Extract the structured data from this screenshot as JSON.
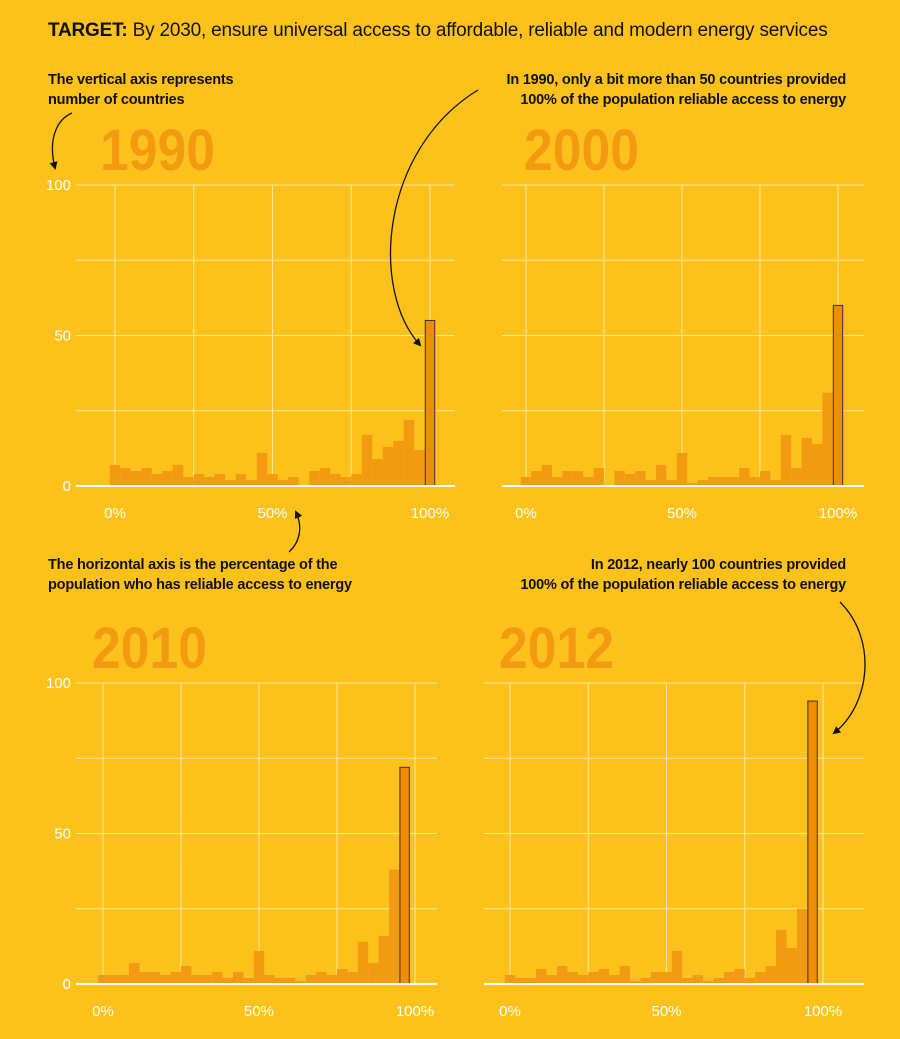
{
  "target": {
    "label": "TARGET:",
    "text": "By 2030, ensure universal access to affordable, reliable and modern energy services"
  },
  "notes": {
    "vertical_axis": [
      "The vertical axis represents",
      "number of countries"
    ],
    "annotation_1990": [
      "In 1990, only a bit more than 50 countries provided",
      "100% of the population reliable access to energy"
    ],
    "horizontal_axis": [
      "The horizontal axis is the percentage of the",
      "population who has reliable access to energy"
    ],
    "annotation_2012": [
      "In 2012, nearly 100 countries provided",
      "100% of the population reliable access to energy"
    ]
  },
  "colors": {
    "background": "#FCC21B",
    "bar": "#F39B10",
    "bar_highlight": "#F08C05",
    "year_label": "#F39B10",
    "grid": "#FDE7A0",
    "text": "#111111"
  },
  "chart_data": [
    {
      "type": "bar",
      "title": "1990",
      "xlabel": "percentage of population with reliable access to energy",
      "ylabel": "number of countries",
      "ylim": [
        0,
        100
      ],
      "yticks": [
        "0",
        "50",
        "100"
      ],
      "xticks": [
        "0%",
        "50%",
        "100%"
      ],
      "bins_percent": [
        0,
        3.33,
        6.67,
        10,
        13.33,
        16.67,
        20,
        23.33,
        26.67,
        30,
        33.33,
        36.67,
        40,
        43.33,
        46.67,
        50,
        53.33,
        56.67,
        60,
        63.33,
        66.67,
        70,
        73.33,
        76.67,
        80,
        83.33,
        86.67,
        90,
        93.33,
        96.67,
        100
      ],
      "values": [
        7,
        6,
        5,
        6,
        4,
        5,
        7,
        3,
        4,
        3,
        4,
        2,
        4,
        2,
        11,
        4,
        2,
        3,
        0,
        5,
        6,
        4,
        3,
        4,
        17,
        9,
        13,
        15,
        22,
        12,
        55
      ],
      "highlight_last": true
    },
    {
      "type": "bar",
      "title": "2000",
      "ylim": [
        0,
        100
      ],
      "yticks": [
        "0",
        "50",
        "100"
      ],
      "xticks": [
        "0%",
        "50%",
        "100%"
      ],
      "bins_percent": [
        0,
        3.33,
        6.67,
        10,
        13.33,
        16.67,
        20,
        23.33,
        26.67,
        30,
        33.33,
        36.67,
        40,
        43.33,
        46.67,
        50,
        53.33,
        56.67,
        60,
        63.33,
        66.67,
        70,
        73.33,
        76.67,
        80,
        83.33,
        86.67,
        90,
        93.33,
        96.67,
        100
      ],
      "values": [
        3,
        5,
        7,
        3,
        5,
        5,
        3,
        6,
        0,
        5,
        4,
        5,
        2,
        7,
        2,
        11,
        1,
        2,
        3,
        3,
        3,
        6,
        3,
        5,
        2,
        17,
        6,
        16,
        14,
        31,
        60
      ],
      "highlight_last": true
    },
    {
      "type": "bar",
      "title": "2010",
      "ylim": [
        0,
        100
      ],
      "yticks": [
        "0",
        "50",
        "100"
      ],
      "xticks": [
        "0%",
        "50%",
        "100%"
      ],
      "bins_percent": [
        0,
        3.33,
        6.67,
        10,
        13.33,
        16.67,
        20,
        23.33,
        26.67,
        30,
        33.33,
        36.67,
        40,
        43.33,
        46.67,
        50,
        53.33,
        56.67,
        60,
        63.33,
        66.67,
        70,
        73.33,
        76.67,
        80,
        83.33,
        86.67,
        90,
        93.33,
        96.67,
        100
      ],
      "values": [
        3,
        3,
        3,
        7,
        4,
        4,
        3,
        4,
        6,
        3,
        3,
        4,
        2,
        4,
        2,
        11,
        3,
        2,
        2,
        1,
        3,
        4,
        3,
        5,
        4,
        14,
        7,
        16,
        38,
        72,
        0
      ],
      "highlight_index": 29
    },
    {
      "type": "bar",
      "title": "2012",
      "ylim": [
        0,
        100
      ],
      "yticks": [
        "0",
        "50",
        "100"
      ],
      "xticks": [
        "0%",
        "50%",
        "100%"
      ],
      "bins_percent": [
        0,
        3.33,
        6.67,
        10,
        13.33,
        16.67,
        20,
        23.33,
        26.67,
        30,
        33.33,
        36.67,
        40,
        43.33,
        46.67,
        50,
        53.33,
        56.67,
        60,
        63.33,
        66.67,
        70,
        73.33,
        76.67,
        80,
        83.33,
        86.67,
        90,
        93.33,
        96.67,
        100
      ],
      "values": [
        3,
        2,
        2,
        5,
        3,
        6,
        4,
        3,
        4,
        5,
        3,
        6,
        1,
        2,
        4,
        4,
        11,
        2,
        3,
        1,
        2,
        4,
        5,
        2,
        4,
        6,
        18,
        12,
        25,
        94,
        0
      ],
      "highlight_index": 29
    }
  ]
}
